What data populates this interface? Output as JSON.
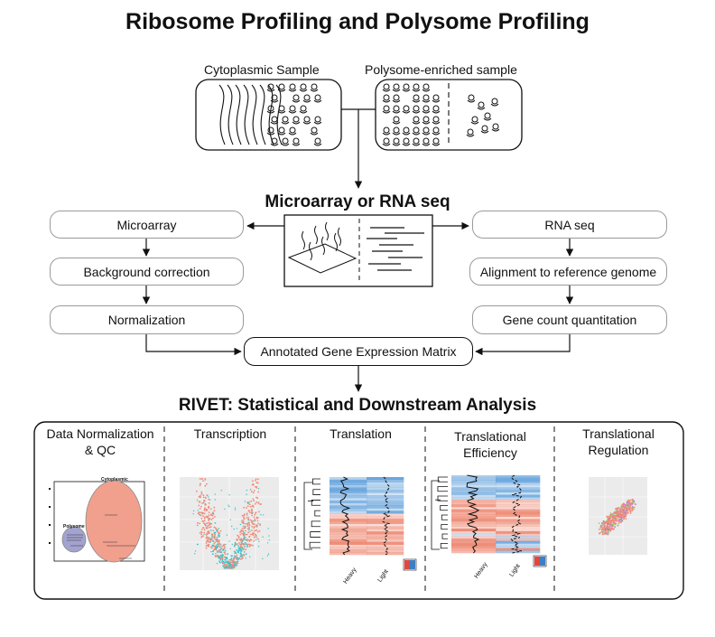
{
  "title": "Ribosome Profiling and Polysome Profiling",
  "samples": {
    "cytoplasmic_label": "Cytoplasmic Sample",
    "polysome_label": "Polysome-enriched sample"
  },
  "sections": {
    "microarray_rnaseq": "Microarray or RNA seq",
    "rivet": "RIVET: Statistical and Downstream Analysis"
  },
  "left_pipeline": [
    "Microarray",
    "Background correction",
    "Normalization"
  ],
  "right_pipeline": [
    "RNA seq",
    "Alignment to reference genome",
    "Gene count quantitation"
  ],
  "matrix_label": "Annotated Gene Expression Matrix",
  "panels": [
    {
      "title_line1": "Data Normalization",
      "title_line2": "& QC"
    },
    {
      "title_line1": "Transcription",
      "title_line2": ""
    },
    {
      "title_line1": "Translation",
      "title_line2": ""
    },
    {
      "title_line1": "Translational",
      "title_line2": "Efficiency"
    },
    {
      "title_line1": "Translational",
      "title_line2": "Regulation"
    }
  ],
  "mini_plot_text": {
    "pca_cytoplasmic": "Cytoplasmic",
    "pca_polysome": "Polysome",
    "heatmap_heavy": "Heavy",
    "heatmap_light": "Light"
  },
  "colors": {
    "salmon": "#f08a78",
    "teal": "#3cc4c8",
    "lavender": "#8e8ec4",
    "blue": "#3f7fc4",
    "grid_bg": "#ebebeb"
  }
}
